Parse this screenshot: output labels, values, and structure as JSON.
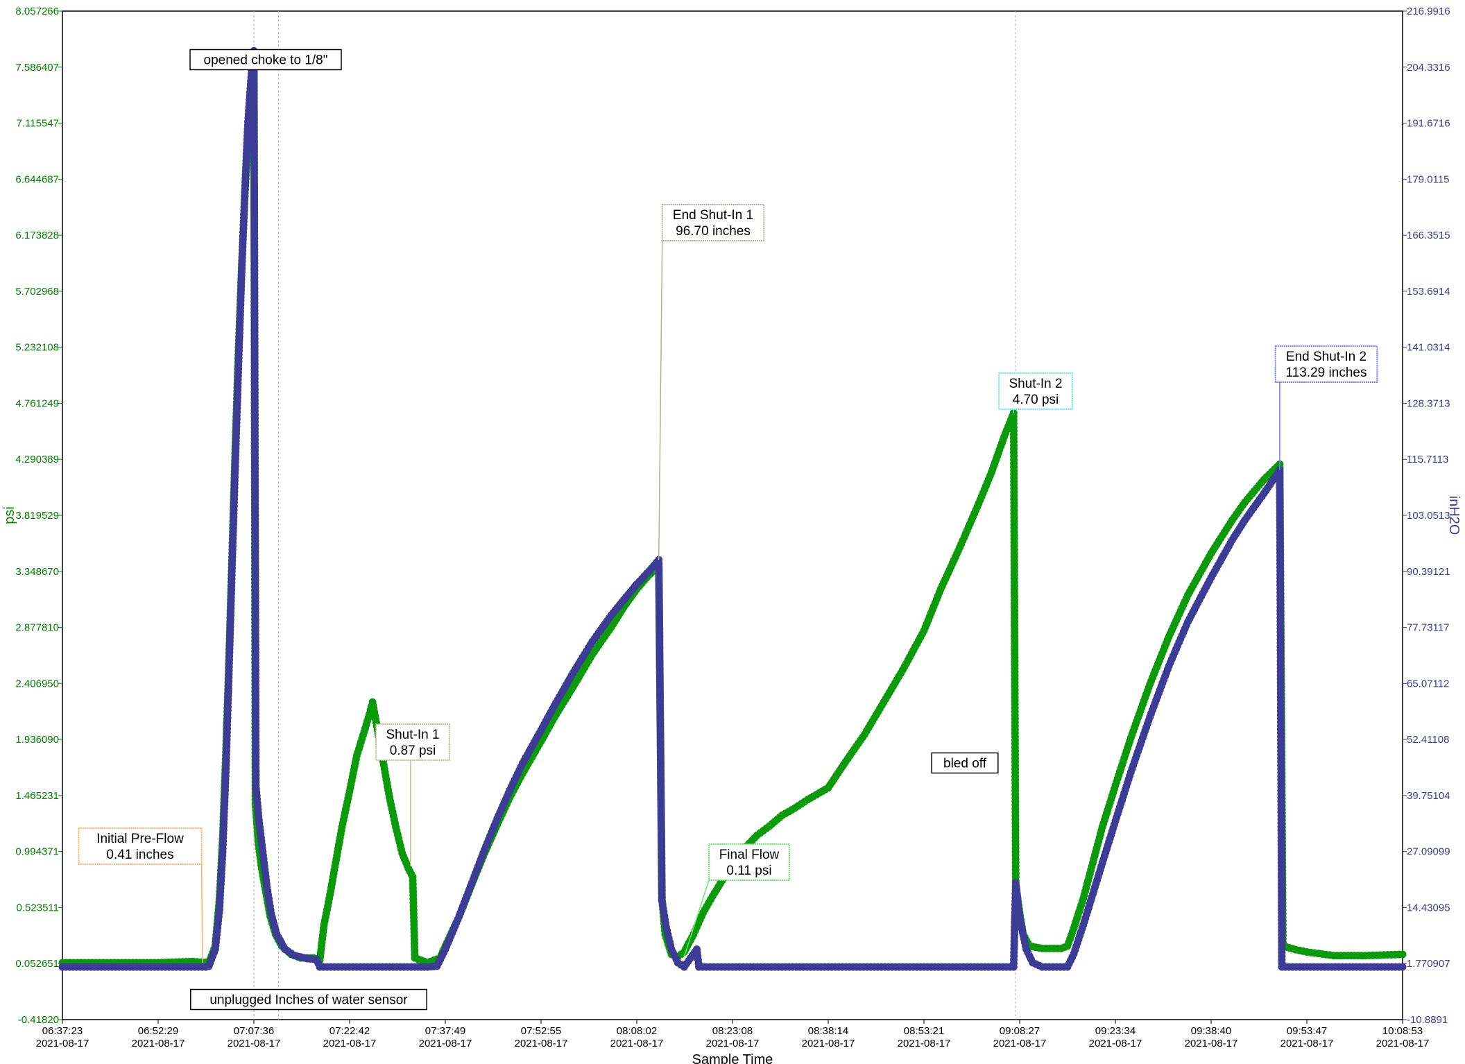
{
  "chart_data": {
    "type": "line",
    "xlabel": "Sample Time",
    "ylabel_left": "psi",
    "ylabel_right": "inH2O",
    "x_date": "2021-08-17",
    "x_ticks": [
      "06:37:23",
      "06:52:29",
      "07:07:36",
      "07:22:42",
      "07:37:49",
      "07:52:55",
      "08:08:02",
      "08:23:08",
      "08:38:14",
      "08:53:21",
      "09:08:27",
      "09:23:34",
      "09:38:40",
      "09:53:47",
      "10:08:53"
    ],
    "x_range": [
      "06:37:23",
      "10:08:53"
    ],
    "ylim_left": [
      -0.418201,
      8.057266
    ],
    "ylim_right": [
      -10.8891,
      216.9916
    ],
    "y_ticks_left": [
      "8.057266",
      "7.586407",
      "7.115547",
      "6.644687",
      "6.173828",
      "5.702968",
      "5.232108",
      "4.761249",
      "4.290389",
      "3.819529",
      "3.348670",
      "2.877810",
      "2.406950",
      "1.936090",
      "1.465231",
      "0.994371",
      "0.523511",
      "0.052651",
      "-0.41820"
    ],
    "y_ticks_right": [
      "216.9916",
      "204.3316",
      "191.6716",
      "179.0115",
      "166.3515",
      "153.6914",
      "141.0314",
      "128.3713",
      "115.7113",
      "103.0513",
      "90.39121",
      "77.73117",
      "65.07112",
      "52.41108",
      "39.75104",
      "27.09099",
      "14.43095",
      "1.770907",
      "-10.8891"
    ],
    "grid": false,
    "series": [
      {
        "name": "psi",
        "axis": "left",
        "color": "#0a9a0a",
        "points": [
          [
            "06:37:23",
            0.06
          ],
          [
            "06:45:00",
            0.06
          ],
          [
            "06:52:29",
            0.06
          ],
          [
            "06:58:00",
            0.07
          ],
          [
            "07:00:30",
            0.06
          ],
          [
            "07:01:30",
            0.2
          ],
          [
            "07:02:10",
            0.6
          ],
          [
            "07:02:40",
            1.1
          ],
          [
            "07:03:10",
            1.8
          ],
          [
            "07:03:40",
            2.6
          ],
          [
            "07:04:10",
            3.5
          ],
          [
            "07:04:40",
            4.4
          ],
          [
            "07:05:10",
            5.2
          ],
          [
            "07:05:40",
            5.9
          ],
          [
            "07:06:10",
            6.5
          ],
          [
            "07:06:40",
            7.0
          ],
          [
            "07:07:10",
            7.4
          ],
          [
            "07:07:36",
            7.62
          ],
          [
            "07:07:50",
            1.4
          ],
          [
            "07:08:20",
            1.05
          ],
          [
            "07:08:50",
            0.85
          ],
          [
            "07:09:30",
            0.65
          ],
          [
            "07:10:10",
            0.45
          ],
          [
            "07:11:00",
            0.3
          ],
          [
            "07:12:00",
            0.2
          ],
          [
            "07:13:30",
            0.13
          ],
          [
            "07:15:00",
            0.1
          ],
          [
            "07:17:00",
            0.1
          ],
          [
            "07:18:00",
            0.08
          ],
          [
            "07:18:40",
            0.38
          ],
          [
            "07:19:30",
            0.6
          ],
          [
            "07:20:30",
            0.9
          ],
          [
            "07:21:30",
            1.2
          ],
          [
            "07:22:42",
            1.5
          ],
          [
            "07:23:50",
            1.8
          ],
          [
            "07:25:00",
            2.0
          ],
          [
            "07:25:50",
            2.15
          ],
          [
            "07:26:20",
            2.25
          ],
          [
            "07:27:00",
            2.05
          ],
          [
            "07:28:00",
            1.75
          ],
          [
            "07:29:00",
            1.45
          ],
          [
            "07:30:00",
            1.2
          ],
          [
            "07:31:00",
            0.98
          ],
          [
            "07:32:00",
            0.85
          ],
          [
            "07:32:40",
            0.78
          ],
          [
            "07:33:00",
            0.1
          ],
          [
            "07:35:00",
            0.06
          ],
          [
            "07:37:00",
            0.1
          ],
          [
            "07:37:49",
            0.2
          ],
          [
            "07:40:00",
            0.45
          ],
          [
            "07:42:00",
            0.72
          ],
          [
            "07:44:00",
            0.98
          ],
          [
            "07:46:00",
            1.22
          ],
          [
            "07:48:00",
            1.45
          ],
          [
            "07:50:00",
            1.65
          ],
          [
            "07:52:55",
            1.92
          ],
          [
            "07:55:00",
            2.12
          ],
          [
            "07:58:00",
            2.38
          ],
          [
            "08:01:00",
            2.65
          ],
          [
            "08:04:00",
            2.88
          ],
          [
            "08:06:00",
            3.05
          ],
          [
            "08:08:02",
            3.2
          ],
          [
            "08:10:00",
            3.32
          ],
          [
            "08:11:30",
            3.4
          ],
          [
            "08:12:00",
            0.6
          ],
          [
            "08:12:30",
            0.3
          ],
          [
            "08:13:30",
            0.13
          ],
          [
            "08:14:30",
            0.11
          ],
          [
            "08:15:30",
            0.15
          ],
          [
            "08:17:00",
            0.3
          ],
          [
            "08:18:30",
            0.48
          ],
          [
            "08:20:00",
            0.62
          ],
          [
            "08:21:30",
            0.75
          ],
          [
            "08:23:08",
            0.88
          ],
          [
            "08:25:00",
            1.02
          ],
          [
            "08:27:00",
            1.13
          ],
          [
            "08:29:00",
            1.21
          ],
          [
            "08:31:00",
            1.3
          ],
          [
            "08:33:00",
            1.36
          ],
          [
            "08:35:00",
            1.43
          ],
          [
            "08:38:14",
            1.53
          ],
          [
            "08:41:00",
            1.75
          ],
          [
            "08:44:00",
            1.98
          ],
          [
            "08:47:00",
            2.25
          ],
          [
            "08:50:00",
            2.52
          ],
          [
            "08:53:21",
            2.85
          ],
          [
            "08:56:00",
            3.2
          ],
          [
            "08:59:00",
            3.55
          ],
          [
            "09:02:00",
            3.92
          ],
          [
            "09:04:00",
            4.18
          ],
          [
            "09:06:00",
            4.48
          ],
          [
            "09:07:30",
            4.68
          ],
          [
            "09:07:50",
            0.72
          ],
          [
            "09:08:27",
            0.48
          ],
          [
            "09:09:00",
            0.3
          ],
          [
            "09:10:00",
            0.2
          ],
          [
            "09:12:00",
            0.18
          ],
          [
            "09:15:00",
            0.18
          ],
          [
            "09:16:00",
            0.2
          ],
          [
            "09:17:00",
            0.35
          ],
          [
            "09:18:30",
            0.6
          ],
          [
            "09:20:00",
            0.9
          ],
          [
            "09:21:30",
            1.2
          ],
          [
            "09:23:34",
            1.55
          ],
          [
            "09:26:00",
            1.95
          ],
          [
            "09:29:00",
            2.4
          ],
          [
            "09:32:00",
            2.8
          ],
          [
            "09:35:00",
            3.15
          ],
          [
            "09:38:40",
            3.5
          ],
          [
            "09:42:00",
            3.78
          ],
          [
            "09:44:00",
            3.93
          ],
          [
            "09:47:00",
            4.12
          ],
          [
            "09:49:30",
            4.25
          ],
          [
            "09:50:00",
            0.2
          ],
          [
            "09:52:00",
            0.17
          ],
          [
            "09:53:47",
            0.15
          ],
          [
            "09:58:00",
            0.12
          ],
          [
            "10:03:00",
            0.12
          ],
          [
            "10:08:53",
            0.13
          ]
        ]
      },
      {
        "name": "inH2O",
        "axis": "right",
        "color": "#3c3c96",
        "points": [
          [
            "06:37:23",
            1.0
          ],
          [
            "06:52:29",
            1.0
          ],
          [
            "07:00:00",
            1.0
          ],
          [
            "07:00:30",
            1.2
          ],
          [
            "07:01:30",
            5.0
          ],
          [
            "07:02:10",
            14.0
          ],
          [
            "07:02:40",
            27.0
          ],
          [
            "07:03:10",
            45.0
          ],
          [
            "07:03:40",
            68.0
          ],
          [
            "07:04:10",
            92.0
          ],
          [
            "07:04:40",
            115.0
          ],
          [
            "07:05:10",
            137.0
          ],
          [
            "07:05:40",
            158.0
          ],
          [
            "07:06:10",
            176.0
          ],
          [
            "07:06:40",
            192.0
          ],
          [
            "07:07:10",
            202.0
          ],
          [
            "07:07:36",
            208.0
          ],
          [
            "07:07:55",
            42.0
          ],
          [
            "07:08:20",
            35.0
          ],
          [
            "07:09:00",
            27.0
          ],
          [
            "07:09:40",
            19.0
          ],
          [
            "07:10:20",
            13.0
          ],
          [
            "07:11:10",
            8.5
          ],
          [
            "07:12:30",
            5.0
          ],
          [
            "07:14:00",
            3.6
          ],
          [
            "07:16:00",
            2.9
          ],
          [
            "07:17:30",
            2.7
          ],
          [
            "07:18:00",
            1.0
          ],
          [
            "07:25:00",
            1.0
          ],
          [
            "07:33:00",
            1.0
          ],
          [
            "07:35:00",
            1.0
          ],
          [
            "07:36:30",
            1.2
          ],
          [
            "07:37:49",
            5.0
          ],
          [
            "07:40:00",
            12.5
          ],
          [
            "07:42:00",
            20.0
          ],
          [
            "07:44:00",
            27.5
          ],
          [
            "07:46:00",
            34.5
          ],
          [
            "07:48:00",
            41.0
          ],
          [
            "07:50:00",
            47.0
          ],
          [
            "07:52:55",
            54.5
          ],
          [
            "07:55:00",
            60.0
          ],
          [
            "07:58:00",
            67.5
          ],
          [
            "08:01:00",
            74.5
          ],
          [
            "08:04:00",
            80.5
          ],
          [
            "08:06:00",
            84.0
          ],
          [
            "08:08:02",
            87.5
          ],
          [
            "08:10:00",
            90.5
          ],
          [
            "08:11:30",
            93.0
          ],
          [
            "08:12:00",
            16.0
          ],
          [
            "08:12:40",
            10.0
          ],
          [
            "08:13:30",
            5.0
          ],
          [
            "08:14:30",
            2.0
          ],
          [
            "08:15:30",
            1.0
          ],
          [
            "08:16:30",
            3.0
          ],
          [
            "08:17:30",
            5.0
          ],
          [
            "08:17:50",
            1.0
          ],
          [
            "08:23:08",
            1.0
          ],
          [
            "08:38:14",
            1.0
          ],
          [
            "08:53:21",
            1.0
          ],
          [
            "09:07:30",
            1.0
          ],
          [
            "09:07:50",
            20.0
          ],
          [
            "09:08:27",
            12.0
          ],
          [
            "09:09:30",
            5.0
          ],
          [
            "09:10:30",
            2.0
          ],
          [
            "09:12:00",
            1.0
          ],
          [
            "09:16:00",
            1.0
          ],
          [
            "09:17:00",
            4.0
          ],
          [
            "09:18:30",
            10.5
          ],
          [
            "09:20:00",
            17.5
          ],
          [
            "09:21:30",
            24.5
          ],
          [
            "09:23:34",
            34.0
          ],
          [
            "09:26:00",
            45.0
          ],
          [
            "09:29:00",
            57.5
          ],
          [
            "09:32:00",
            69.0
          ],
          [
            "09:35:00",
            79.0
          ],
          [
            "09:38:40",
            89.0
          ],
          [
            "09:42:00",
            97.5
          ],
          [
            "09:44:00",
            102.0
          ],
          [
            "09:47:00",
            108.0
          ],
          [
            "09:49:30",
            113.29
          ],
          [
            "09:49:50",
            1.0
          ],
          [
            "09:53:47",
            1.0
          ],
          [
            "10:08:53",
            1.0
          ]
        ]
      }
    ],
    "vertical_markers": [
      "07:07:36",
      "07:11:30",
      "09:07:50"
    ],
    "annotations": [
      {
        "id": "initial_preflow",
        "lines": [
          "Initial Pre-Flow",
          "0.41 inches"
        ],
        "border": "#f6b26b",
        "leader": "#f6b26b",
        "target_time": "06:59:30",
        "target_value": 0.06,
        "target_axis": "left"
      },
      {
        "id": "opened_choke",
        "lines": [
          "opened choke to 1/8\""
        ],
        "border": "#000000",
        "leader": null,
        "target_time": "07:07:36",
        "target_value": 7.62,
        "target_axis": "left"
      },
      {
        "id": "unplugged",
        "lines": [
          "unplugged Inches of water sensor"
        ],
        "border": "#000000",
        "leader": null,
        "target_time": "07:11:30",
        "target_value": -0.2,
        "target_axis": "left"
      },
      {
        "id": "shutin1",
        "lines": [
          "Shut-In 1",
          "0.87 psi"
        ],
        "border": "#bdbd95",
        "leader": "#bdbd95",
        "target_time": "07:32:20",
        "target_value": 0.87,
        "target_axis": "left"
      },
      {
        "id": "end_shutin1",
        "lines": [
          "End Shut-In 1",
          "96.70 inches"
        ],
        "border": "#b0b0a0",
        "leader": "#b0b0a0",
        "target_time": "08:11:30",
        "target_value": 93.0,
        "target_axis": "right"
      },
      {
        "id": "final_flow",
        "lines": [
          "Final Flow",
          "0.11 psi"
        ],
        "border": "#66ee66",
        "leader": "#66ee66",
        "target_time": "08:15:30",
        "target_value": 0.11,
        "target_axis": "left"
      },
      {
        "id": "bled_off",
        "lines": [
          "bled off"
        ],
        "border": "#000000",
        "leader": null,
        "target_time": "09:07:50",
        "target_value": 1.5,
        "target_axis": "left"
      },
      {
        "id": "shutin2",
        "lines": [
          "Shut-In 2",
          "4.70 psi"
        ],
        "border": "#66e8ee",
        "leader": "#66e8ee",
        "target_time": "09:07:30",
        "target_value": 4.68,
        "target_axis": "left"
      },
      {
        "id": "end_shutin2",
        "lines": [
          "End Shut-In 2",
          "113.29 inches"
        ],
        "border": "#7777ff",
        "leader": "#7777ff",
        "target_time": "09:49:30",
        "target_value": 113.29,
        "target_axis": "right"
      }
    ]
  }
}
